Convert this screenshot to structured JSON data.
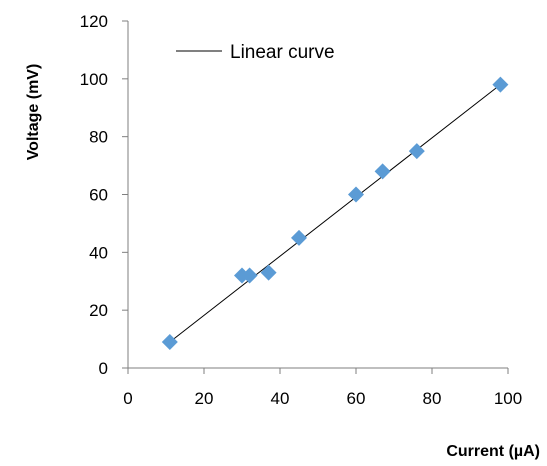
{
  "chart_data": {
    "type": "scatter",
    "title": "",
    "xlabel": "Current (µA)",
    "ylabel": "Voltage (mV)",
    "xlim": [
      0,
      100
    ],
    "ylim": [
      0,
      120
    ],
    "xticks": [
      0,
      20,
      40,
      60,
      80,
      100
    ],
    "yticks": [
      0,
      20,
      40,
      60,
      80,
      100,
      120
    ],
    "grid": false,
    "legend": {
      "position": "top-left",
      "entries": [
        "Linear curve"
      ]
    },
    "points": {
      "x": [
        11,
        30,
        32,
        37,
        45,
        60,
        67,
        76,
        98
      ],
      "y": [
        9,
        32,
        32,
        33,
        45,
        60,
        68,
        75,
        98
      ],
      "marker": "diamond",
      "color": "#5B9BD5"
    },
    "fit_line": {
      "name": "Linear curve",
      "x": [
        11,
        98
      ],
      "y": [
        9,
        98
      ],
      "color": "#000000"
    }
  }
}
